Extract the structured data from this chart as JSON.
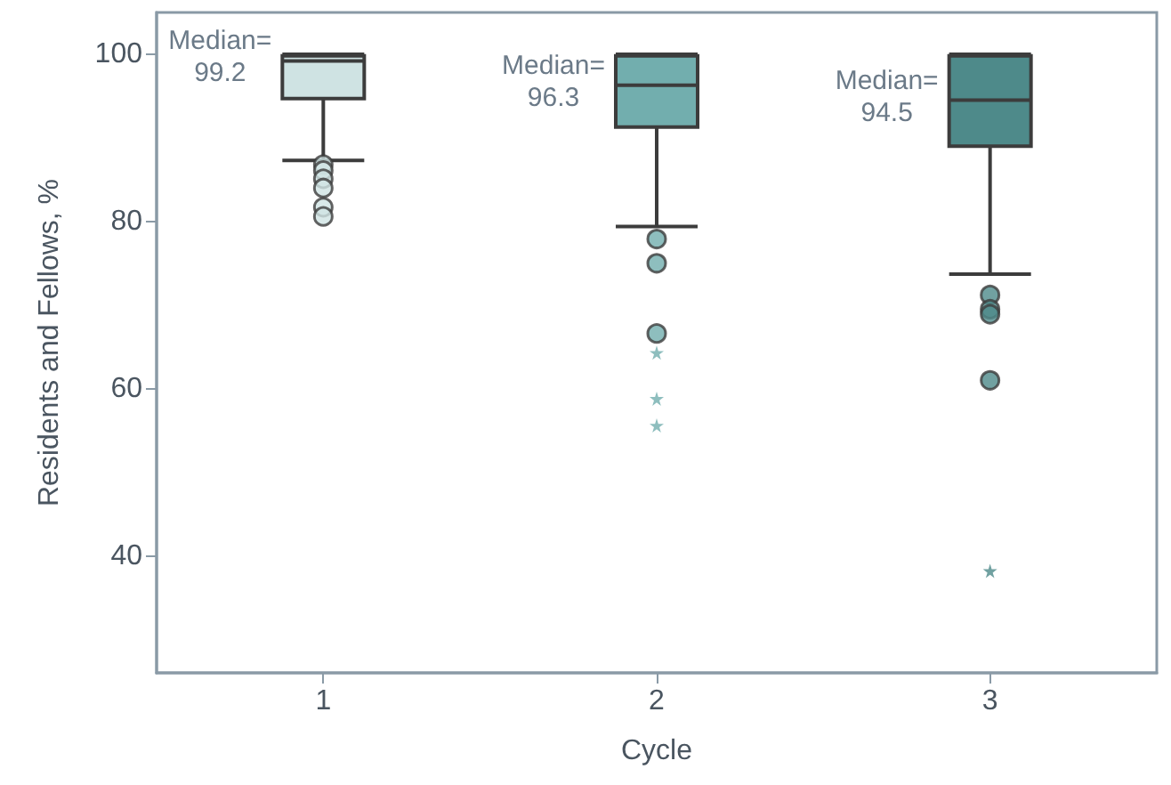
{
  "chart_data": {
    "type": "box",
    "xlabel": "Cycle",
    "ylabel": "Residents and Fellows, %",
    "categories": [
      "1",
      "2",
      "3"
    ],
    "boxes": [
      {
        "low": 87.3,
        "q1": 94.7,
        "median": 99.2,
        "q3": 99.8,
        "high": 100,
        "outliers": [
          86.8,
          86.1,
          85.1,
          84.0,
          81.7,
          80.6
        ]
      },
      {
        "low": 79.4,
        "q1": 91.3,
        "median": 96.3,
        "q3": 99.8,
        "high": 100,
        "outliers": [
          77.9,
          75.0,
          66.6
        ]
      },
      {
        "low": 73.7,
        "q1": 89.0,
        "median": 94.5,
        "q3": 99.8,
        "high": 100,
        "outliers": [
          71.2,
          69.5,
          68.9,
          61.0
        ]
      }
    ],
    "colors": [
      "#cfe3e3",
      "#72aeae",
      "#4e8a8a"
    ],
    "series": [
      {
        "type": "scatter",
        "marker": "star",
        "x": [
          "2",
          "2",
          "2",
          "3"
        ],
        "values": [
          64.3,
          58.8,
          55.6,
          38.2
        ],
        "colors": [
          "#72aeae",
          "#72aeae",
          "#72aeae",
          "#4e8a8a"
        ]
      }
    ],
    "ylim": [
      26,
      105
    ],
    "yticks": [
      40,
      60,
      80,
      100
    ],
    "annotations": [
      {
        "text": "Median=\n99.2",
        "x": "1",
        "y": 99.2
      },
      {
        "text": "Median=\n96.3",
        "x": "2",
        "y": 96.3
      },
      {
        "text": "Median=\n94.5",
        "x": "3",
        "y": 94.5
      }
    ]
  }
}
